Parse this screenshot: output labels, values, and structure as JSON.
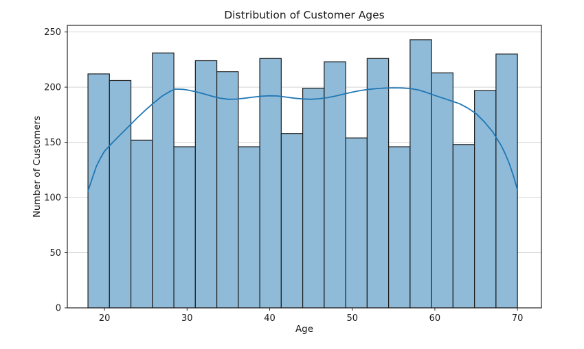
{
  "chart_data": {
    "type": "bar",
    "subtype": "histogram_with_kde",
    "title": "Distribution of Customer Ages",
    "xlabel": "Age",
    "ylabel": "Number of Customers",
    "bin_edges": [
      18.0,
      20.6,
      23.2,
      25.8,
      28.4,
      31.0,
      33.6,
      36.2,
      38.8,
      41.4,
      44.0,
      46.6,
      49.2,
      51.8,
      54.4,
      57.0,
      59.6,
      62.2,
      64.8,
      67.4,
      70.0
    ],
    "counts": [
      212,
      206,
      152,
      231,
      146,
      224,
      214,
      146,
      226,
      158,
      199,
      223,
      154,
      226,
      146,
      243,
      213,
      148,
      197,
      230
    ],
    "kde_line": {
      "name": "kde-smooth-curve",
      "points": [
        [
          18.0,
          106
        ],
        [
          18.5,
          117
        ],
        [
          19.0,
          128
        ],
        [
          19.5,
          135.5
        ],
        [
          20.0,
          142
        ],
        [
          21,
          150
        ],
        [
          22,
          157.5
        ],
        [
          23,
          165
        ],
        [
          24,
          172.5
        ],
        [
          25,
          179.5
        ],
        [
          26,
          186
        ],
        [
          27,
          192
        ],
        [
          28,
          196.5
        ],
        [
          28.6,
          198.3
        ],
        [
          29.5,
          198
        ],
        [
          30,
          197.5
        ],
        [
          31,
          196
        ],
        [
          32,
          194
        ],
        [
          33,
          191.8
        ],
        [
          34,
          190
        ],
        [
          35,
          189
        ],
        [
          36,
          189.2
        ],
        [
          37,
          190
        ],
        [
          38,
          191
        ],
        [
          39,
          191.8
        ],
        [
          40,
          192.2
        ],
        [
          41,
          192
        ],
        [
          42,
          191
        ],
        [
          43,
          190
        ],
        [
          44,
          189.3
        ],
        [
          45,
          189
        ],
        [
          46,
          189.5
        ],
        [
          47,
          190.5
        ],
        [
          48,
          192
        ],
        [
          49,
          193.8
        ],
        [
          50,
          195.5
        ],
        [
          51,
          197
        ],
        [
          52,
          198
        ],
        [
          53,
          198.8
        ],
        [
          54,
          199.2
        ],
        [
          55,
          199.4
        ],
        [
          56,
          199.3
        ],
        [
          57,
          198.8
        ],
        [
          58,
          197.5
        ],
        [
          59,
          195.2
        ],
        [
          60,
          192.5
        ],
        [
          61,
          190
        ],
        [
          62,
          187.5
        ],
        [
          63,
          185
        ],
        [
          64,
          181
        ],
        [
          65,
          176
        ],
        [
          66,
          168.5
        ],
        [
          67,
          159.5
        ],
        [
          68,
          147.5
        ],
        [
          68.5,
          140
        ],
        [
          69,
          131
        ],
        [
          69.5,
          120
        ],
        [
          70,
          107
        ]
      ]
    },
    "xticks": [
      20,
      30,
      40,
      50,
      60,
      70
    ],
    "yticks": [
      0,
      50,
      100,
      150,
      200,
      250
    ],
    "xlim": [
      15.5,
      72.9
    ],
    "ylim": [
      0,
      256
    ],
    "grid": "y",
    "legend": "none",
    "colors": {
      "bar_fill": "#8fbbd9",
      "bar_edge": "#1b1b1b",
      "kde_line": "#1f77b4",
      "gridline": "#d4d4d4",
      "spine": "#262626",
      "background": "#ffffff"
    }
  }
}
